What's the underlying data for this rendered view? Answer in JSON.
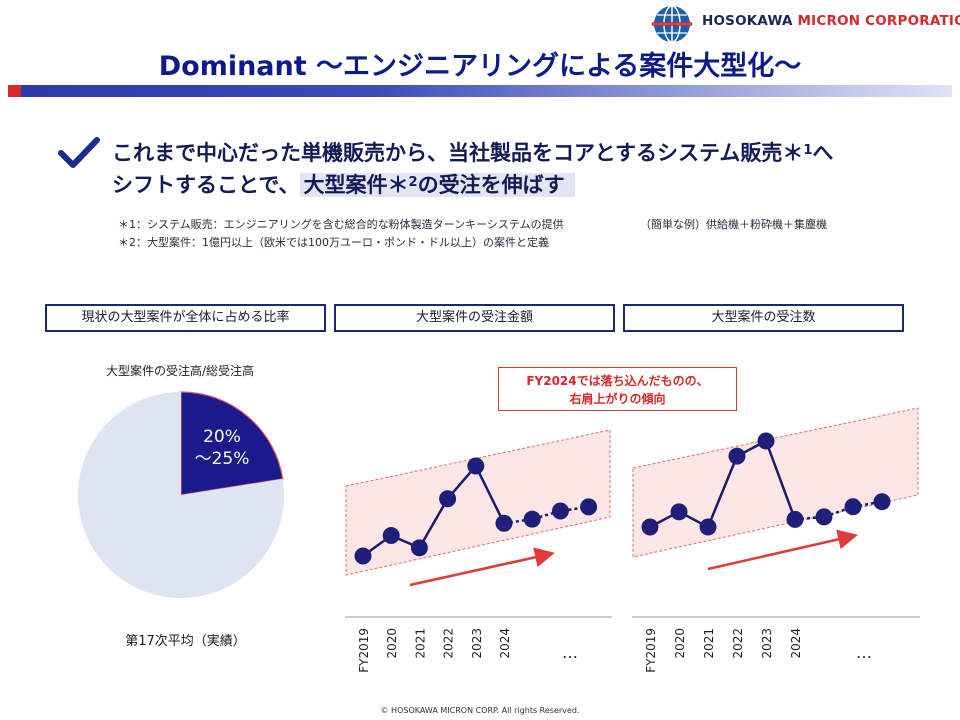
{
  "header": {
    "company_name_part1": "HOSOKAWA ",
    "company_name_part2": "MICRON CORPORATION"
  },
  "title": "Dominant ～エンジニアリングによる案件大型化～",
  "headline": {
    "line1_text": "これまで中心だった単機販売から、当社製品をコアとするシステム販売",
    "line1_note_mark": "＊",
    "line1_note_num": "1",
    "line1_tail": "へ",
    "line2_text": "シフトすることで、",
    "line2_highlight_text": "大型案件",
    "line2_note_mark": "＊",
    "line2_note_num": "2",
    "line2_highlight_tail": "の受注を伸ばす"
  },
  "notes": {
    "note1": "＊1：システム販売：エンジニアリングを含む総合的な粉体製造ターンキーシステムの提供",
    "note1_example": "（簡単な例）供給機＋粉砕機＋集塵機",
    "note2": "＊2：大型案件：1億円以上（欧米では100万ユーロ・ポンド・ドル以上）の案件と定義"
  },
  "panels": {
    "panel1_title": "現状の大型案件が全体に占める比率",
    "panel2_title": "大型案件の受注金額",
    "panel3_title": "大型案件の受注数"
  },
  "pie": {
    "label": "大型案件の受注高/総受注高",
    "slice_text_line1": "20%",
    "slice_text_line2": "～25%",
    "caption": "第17次平均（実績）",
    "highlight_color": "#1a1a8c",
    "rest_color": "#dde5f2"
  },
  "callout": {
    "line1": "FY2024では落ち込んだものの、",
    "line2": "右肩上がりの傾向"
  },
  "chart_data": [
    {
      "type": "pie",
      "title": "大型案件の受注高/総受注高",
      "slices": [
        {
          "label": "20%～25%",
          "value": 22.5,
          "color": "#1a1a8c"
        },
        {
          "label": "",
          "value": 77.5,
          "color": "#dde5f2"
        }
      ]
    },
    {
      "type": "line",
      "title": "大型案件の受注金額",
      "categories": [
        "FY2019",
        "2020",
        "2021",
        "2022",
        "2023",
        "2024",
        "",
        "",
        ""
      ],
      "tick_labels": [
        "FY2019",
        "2020",
        "2021",
        "2022",
        "2023",
        "2024"
      ],
      "ellipsis": "…",
      "values": [
        1.0,
        2.0,
        1.4,
        3.8,
        5.4,
        2.6,
        2.8,
        3.2,
        3.4
      ],
      "solid_until_index": 5,
      "ylim": [
        0,
        6
      ],
      "series_color": "#1a1a6e"
    },
    {
      "type": "line",
      "title": "大型案件の受注数",
      "categories": [
        "FY2019",
        "2020",
        "2021",
        "2022",
        "2023",
        "2024",
        "",
        "",
        ""
      ],
      "tick_labels": [
        "FY2019",
        "2020",
        "2021",
        "2022",
        "2023",
        "2024"
      ],
      "ellipsis": "…",
      "values": [
        1.6,
        2.2,
        1.6,
        4.4,
        5.0,
        1.9,
        2.0,
        2.4,
        2.6
      ],
      "solid_until_index": 5,
      "ylim": [
        0,
        6
      ],
      "series_color": "#1a1a6e"
    }
  ],
  "footer": "© HOSOKAWA  MICRON  CORP.    All  rights  Reserved."
}
